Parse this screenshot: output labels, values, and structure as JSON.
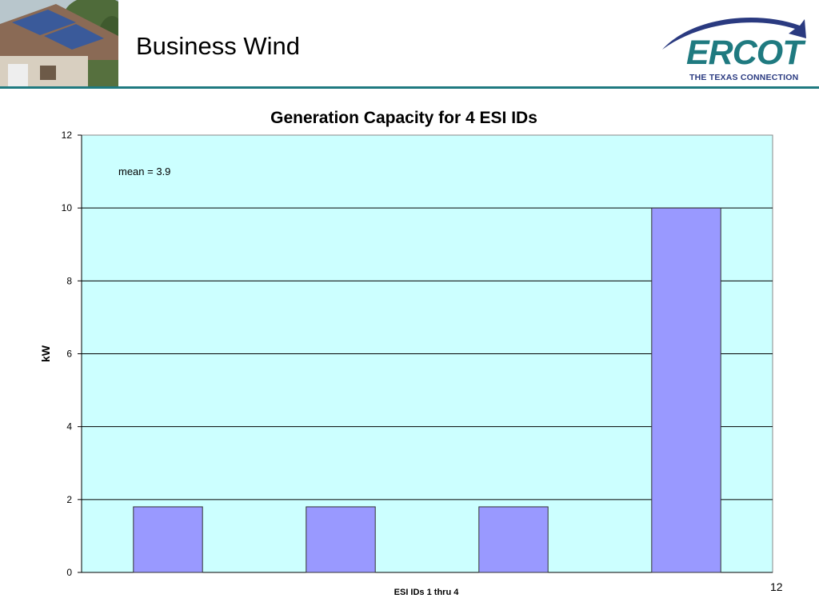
{
  "slide": {
    "title": "Business Wind",
    "page_number": "12"
  },
  "logo": {
    "name": "ERCOT",
    "tagline": "THE TEXAS CONNECTION"
  },
  "colors": {
    "accent": "#1f7a80",
    "plot_bg": "#ccffff",
    "bar_fill": "#9999ff",
    "bar_stroke": "#333333"
  },
  "chart_data": {
    "type": "bar",
    "title": "Generation Capacity for 4 ESI IDs",
    "xlabel": "ESI IDs 1 thru 4",
    "ylabel": "kW",
    "categories": [
      "",
      "",
      "",
      ""
    ],
    "values": [
      1.8,
      1.8,
      1.8,
      10
    ],
    "ylim": [
      0,
      12
    ],
    "yticks": [
      0,
      2,
      4,
      6,
      8,
      10,
      12
    ],
    "grid": true,
    "legend": "none",
    "annotations": [
      {
        "text": "mean = 3.9"
      }
    ]
  }
}
